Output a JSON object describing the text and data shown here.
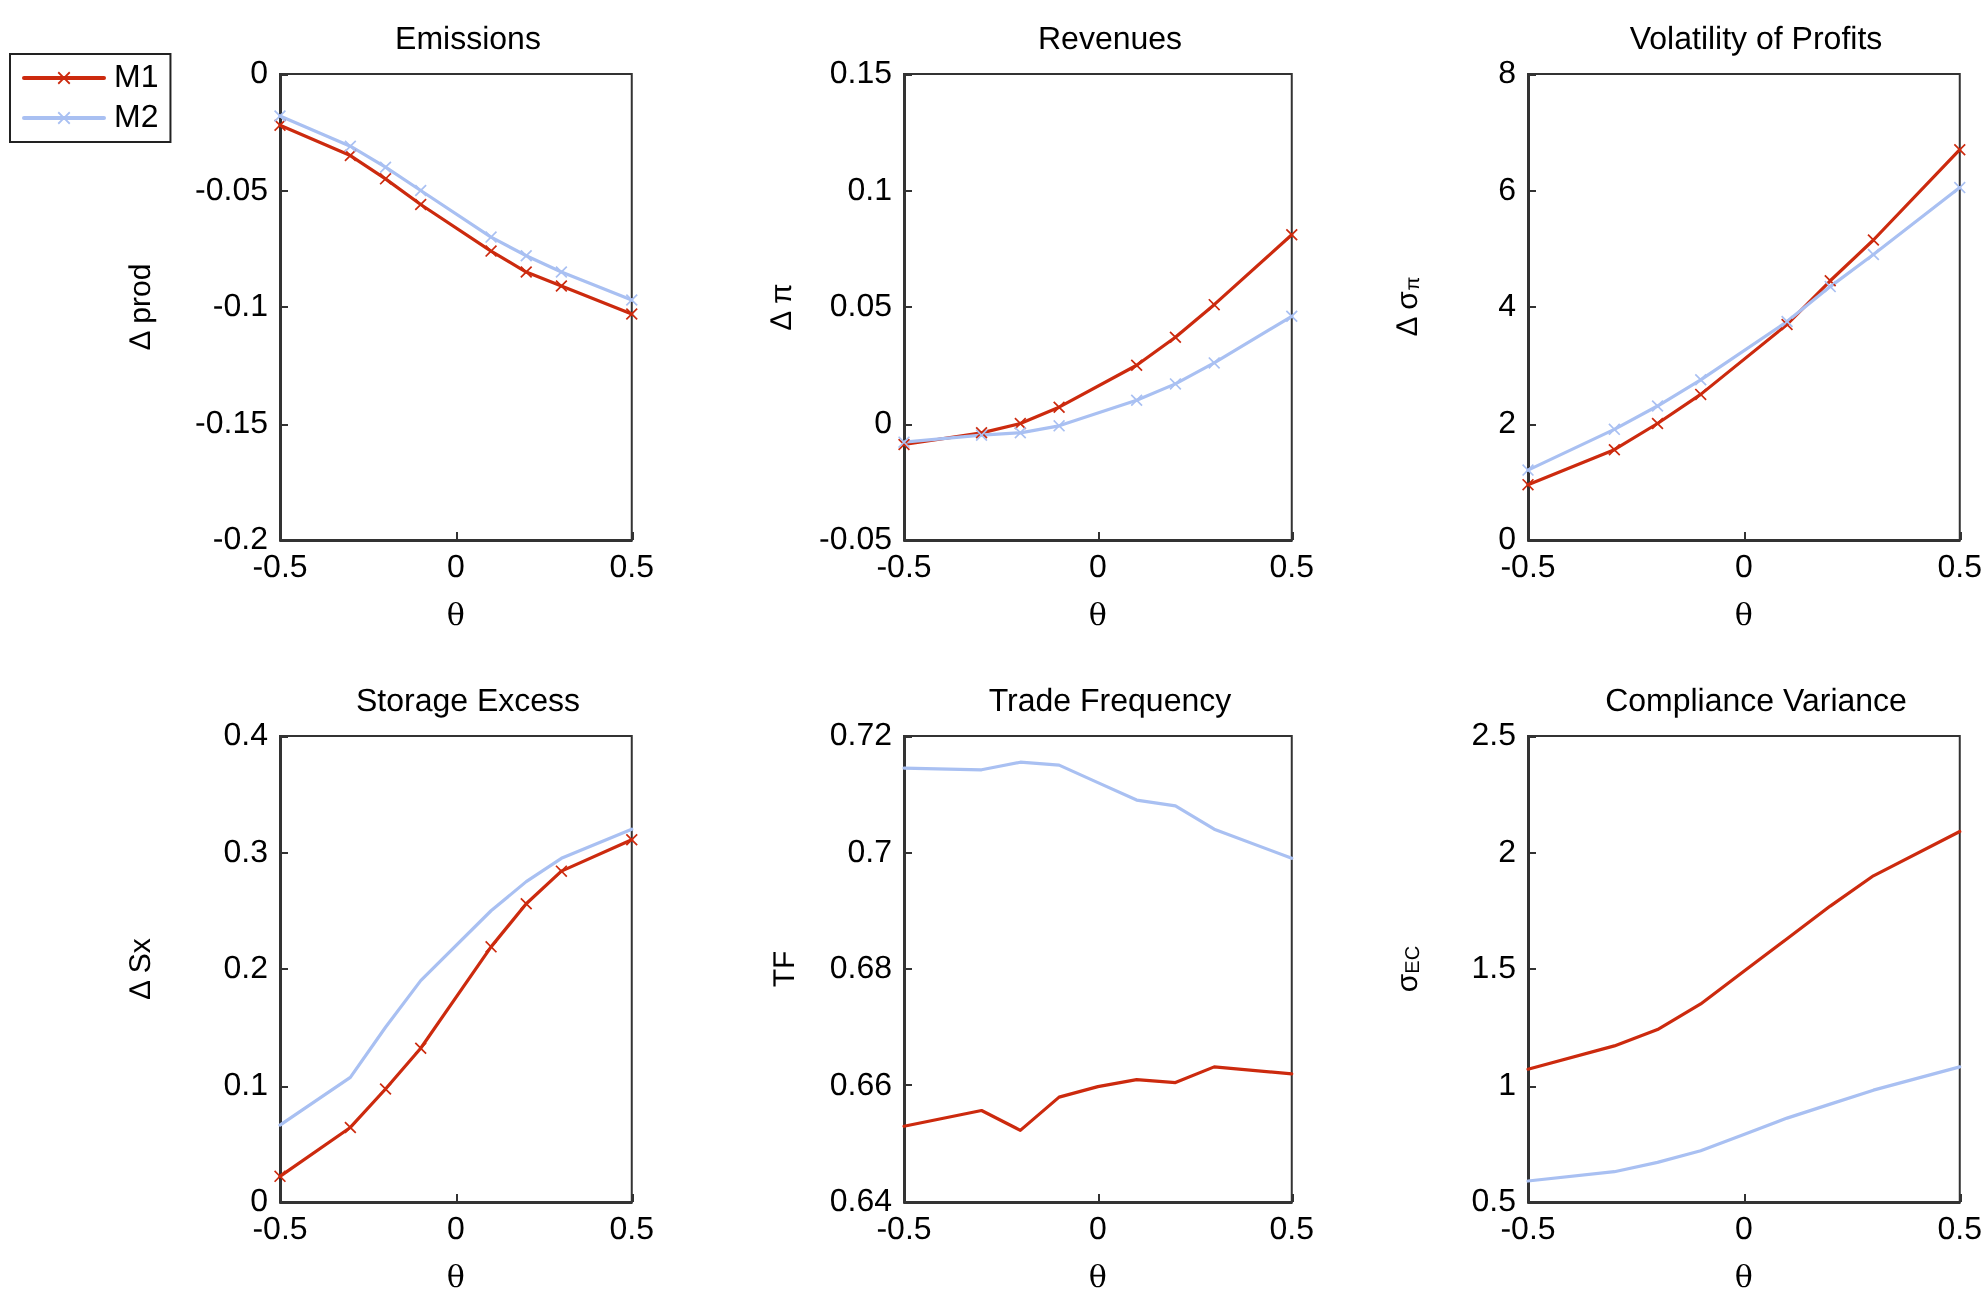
{
  "chart_data": [
    {
      "type": "line",
      "title": "Emissions",
      "xlabel": "θ",
      "ylabel": "Δ prod",
      "xlim": [
        -0.5,
        0.5
      ],
      "xticks": [
        -0.5,
        0,
        0.5
      ],
      "ylim": [
        -0.2,
        0
      ],
      "yticks": [
        -0.2,
        -0.15,
        -0.1,
        -0.05,
        0
      ],
      "grid": false,
      "legend": "top left",
      "x": [
        -0.5,
        -0.3,
        -0.2,
        -0.1,
        0.1,
        0.2,
        0.3,
        0.5
      ],
      "series": [
        {
          "name": "M1",
          "color": "#cc2a0e",
          "marker": "cross",
          "values": [
            -0.022,
            -0.035,
            -0.045,
            -0.056,
            -0.076,
            -0.085,
            -0.091,
            -0.103
          ]
        },
        {
          "name": "M2",
          "color": "#a9c0f2",
          "marker": "cross",
          "values": [
            -0.018,
            -0.031,
            -0.04,
            -0.05,
            -0.07,
            -0.078,
            -0.085,
            -0.097
          ]
        }
      ]
    },
    {
      "type": "line",
      "title": "Revenues",
      "xlabel": "θ",
      "ylabel": "Δ π",
      "xlim": [
        -0.5,
        0.5
      ],
      "xticks": [
        -0.5,
        0,
        0.5
      ],
      "ylim": [
        -0.05,
        0.15
      ],
      "yticks": [
        -0.05,
        0,
        0.05,
        0.1,
        0.15
      ],
      "grid": false,
      "legend": false,
      "x": [
        -0.5,
        -0.3,
        -0.2,
        -0.1,
        0.1,
        0.2,
        0.3,
        0.5
      ],
      "series": [
        {
          "color": "#cc2a0e",
          "marker": "cross",
          "values": [
            -0.009,
            -0.004,
            0.0,
            0.007,
            0.025,
            0.037,
            0.051,
            0.081
          ]
        },
        {
          "color": "#a9c0f2",
          "marker": "cross",
          "values": [
            -0.008,
            -0.005,
            -0.004,
            -0.001,
            0.01,
            0.017,
            0.026,
            0.046
          ]
        }
      ]
    },
    {
      "type": "line",
      "title": "Volatility of Profits",
      "xlabel": "θ",
      "ylabel": "Δ σ$_{π}$",
      "xlim": [
        -0.5,
        0.5
      ],
      "xticks": [
        -0.5,
        0,
        0.5
      ],
      "ylim": [
        0,
        8
      ],
      "yticks": [
        0,
        2,
        4,
        6,
        8
      ],
      "grid": false,
      "legend": false,
      "x": [
        -0.5,
        -0.3,
        -0.2,
        -0.1,
        0.1,
        0.2,
        0.3,
        0.5
      ],
      "series": [
        {
          "color": "#cc2a0e",
          "marker": "cross",
          "values": [
            0.95,
            1.55,
            2.0,
            2.5,
            3.7,
            4.45,
            5.15,
            6.7
          ]
        },
        {
          "color": "#a9c0f2",
          "marker": "cross",
          "values": [
            1.2,
            1.9,
            2.3,
            2.75,
            3.75,
            4.35,
            4.9,
            6.05
          ]
        }
      ]
    },
    {
      "type": "line",
      "title": "Storage Excess",
      "xlabel": "θ",
      "ylabel": "Δ Sx",
      "xlim": [
        -0.5,
        0.5
      ],
      "xticks": [
        -0.5,
        0,
        0.5
      ],
      "ylim": [
        0,
        0.4
      ],
      "yticks": [
        0,
        0.1,
        0.2,
        0.3,
        0.4
      ],
      "grid": false,
      "legend": false,
      "x": [
        -0.5,
        -0.3,
        -0.2,
        -0.1,
        0.1,
        0.2,
        0.3,
        0.5
      ],
      "series": [
        {
          "color": "#cc2a0e",
          "marker": "cross",
          "values": [
            0.022,
            0.064,
            0.097,
            0.132,
            0.219,
            0.256,
            0.284,
            0.311
          ]
        },
        {
          "color": "#a9c0f2",
          "marker": "none",
          "values": [
            0.066,
            0.107,
            0.15,
            0.19,
            0.25,
            0.275,
            0.295,
            0.32
          ]
        }
      ]
    },
    {
      "type": "line",
      "title": "Trade Frequency",
      "xlabel": "θ",
      "ylabel": "TF",
      "xlim": [
        -0.5,
        0.5
      ],
      "xticks": [
        -0.5,
        0,
        0.5
      ],
      "ylim": [
        0.64,
        0.72
      ],
      "yticks": [
        0.64,
        0.66,
        0.68,
        0.7,
        0.72
      ],
      "grid": false,
      "legend": false,
      "x": [
        -0.5,
        -0.3,
        -0.2,
        -0.1,
        0,
        0.1,
        0.2,
        0.3,
        0.5
      ],
      "series": [
        {
          "color": "#cc2a0e",
          "marker": "none",
          "values": [
            0.653,
            0.6557,
            0.6523,
            0.658,
            0.6598,
            0.661,
            0.6605,
            0.6632,
            0.662
          ]
        },
        {
          "color": "#a9c0f2",
          "marker": "none",
          "values": [
            0.7145,
            0.7142,
            0.7155,
            0.715,
            0.712,
            0.709,
            0.708,
            0.704,
            0.699
          ]
        }
      ]
    },
    {
      "type": "line",
      "title": "Compliance Variance",
      "xlabel": "θ",
      "ylabel": "σ$_{EC}$",
      "xlim": [
        -0.5,
        0.5
      ],
      "xticks": [
        -0.5,
        0,
        0.5
      ],
      "ylim": [
        0.5,
        2.5
      ],
      "yticks": [
        0.5,
        1,
        1.5,
        2,
        2.5
      ],
      "grid": false,
      "legend": false,
      "x": [
        -0.5,
        -0.3,
        -0.2,
        -0.1,
        0,
        0.1,
        0.2,
        0.3,
        0.5
      ],
      "series": [
        {
          "color": "#cc2a0e",
          "marker": "none",
          "values": [
            1.07,
            1.17,
            1.24,
            1.35,
            1.49,
            1.63,
            1.77,
            1.9,
            2.09
          ]
        },
        {
          "color": "#a9c0f2",
          "marker": "none",
          "values": [
            0.59,
            0.63,
            0.67,
            0.72,
            0.79,
            0.86,
            0.92,
            0.98,
            1.08
          ]
        }
      ]
    }
  ]
}
